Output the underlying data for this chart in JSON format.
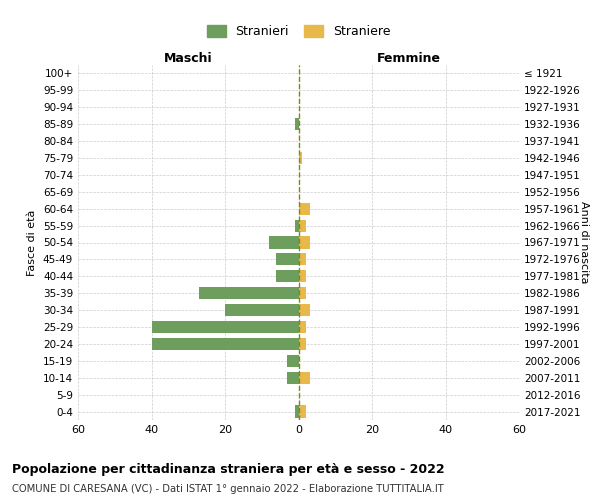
{
  "age_groups": [
    "100+",
    "95-99",
    "90-94",
    "85-89",
    "80-84",
    "75-79",
    "70-74",
    "65-69",
    "60-64",
    "55-59",
    "50-54",
    "45-49",
    "40-44",
    "35-39",
    "30-34",
    "25-29",
    "20-24",
    "15-19",
    "10-14",
    "5-9",
    "0-4"
  ],
  "birth_years": [
    "≤ 1921",
    "1922-1926",
    "1927-1931",
    "1932-1936",
    "1937-1941",
    "1942-1946",
    "1947-1951",
    "1952-1956",
    "1957-1961",
    "1962-1966",
    "1967-1971",
    "1972-1976",
    "1977-1981",
    "1982-1986",
    "1987-1991",
    "1992-1996",
    "1997-2001",
    "2002-2006",
    "2007-2011",
    "2012-2016",
    "2017-2021"
  ],
  "males": [
    0,
    0,
    0,
    1,
    0,
    0,
    0,
    0,
    0,
    1,
    8,
    6,
    6,
    27,
    20,
    40,
    40,
    3,
    3,
    0,
    1
  ],
  "females": [
    0,
    0,
    0,
    0,
    0,
    1,
    0,
    0,
    3,
    2,
    3,
    2,
    2,
    2,
    3,
    2,
    2,
    0,
    3,
    0,
    2
  ],
  "male_color": "#6d9e5e",
  "female_color": "#e8b84b",
  "male_label": "Stranieri",
  "female_label": "Straniere",
  "xlim": 60,
  "title": "Popolazione per cittadinanza straniera per età e sesso - 2022",
  "subtitle": "COMUNE DI CARESANA (VC) - Dati ISTAT 1° gennaio 2022 - Elaborazione TUTTITALIA.IT",
  "xlabel_left": "Maschi",
  "xlabel_right": "Femmine",
  "ylabel_left": "Fasce di età",
  "ylabel_right": "Anni di nascita",
  "bg_color": "#ffffff",
  "grid_color": "#cccccc"
}
